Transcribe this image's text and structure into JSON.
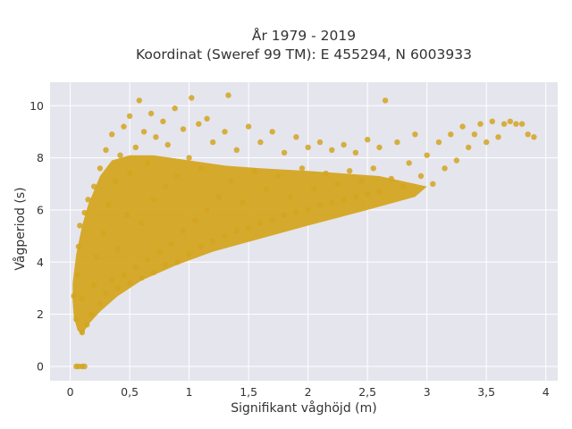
{
  "chart_data": {
    "type": "scatter",
    "title": "År 1979 - 2019",
    "subtitle": "Koordinat (Sweref 99 TM): E 455294, N 6003933",
    "xlabel": "Signifikant våghöjd (m)",
    "ylabel": "Vågperiod (s)",
    "xlim": [
      -0.17,
      4.1
    ],
    "ylim": [
      -0.55,
      10.9
    ],
    "x_ticks": [
      0,
      0.5,
      1,
      1.5,
      2,
      2.5,
      3,
      3.5,
      4
    ],
    "x_tick_labels": [
      "0",
      "0,5",
      "1",
      "1,5",
      "2",
      "2,5",
      "3",
      "3,5",
      "4"
    ],
    "y_ticks": [
      0,
      2,
      4,
      6,
      8,
      10
    ],
    "y_tick_labels": [
      "0",
      "2",
      "4",
      "6",
      "8",
      "10"
    ],
    "grid": true,
    "legend": "none",
    "marker_color": "#D4A520",
    "plot_background": "#E5E5EE",
    "series": [
      {
        "points": [
          [
            0.05,
            0.0
          ],
          [
            0.07,
            0.0
          ],
          [
            0.1,
            0.0
          ],
          [
            0.12,
            0.0
          ],
          [
            0.03,
            2.7
          ],
          [
            0.05,
            1.8
          ],
          [
            0.06,
            3.5
          ],
          [
            0.07,
            4.6
          ],
          [
            0.08,
            5.4
          ],
          [
            0.1,
            1.3
          ],
          [
            0.1,
            2.6
          ],
          [
            0.12,
            5.9
          ],
          [
            0.14,
            1.6
          ],
          [
            0.15,
            6.4
          ],
          [
            0.18,
            2.0
          ],
          [
            0.2,
            3.1
          ],
          [
            0.2,
            6.9
          ],
          [
            0.22,
            4.2
          ],
          [
            0.25,
            2.4
          ],
          [
            0.25,
            7.6
          ],
          [
            0.28,
            5.1
          ],
          [
            0.3,
            2.8
          ],
          [
            0.3,
            8.3
          ],
          [
            0.32,
            6.2
          ],
          [
            0.35,
            3.3
          ],
          [
            0.35,
            8.9
          ],
          [
            0.38,
            7.1
          ],
          [
            0.4,
            3.0
          ],
          [
            0.4,
            4.5
          ],
          [
            0.42,
            8.1
          ],
          [
            0.45,
            3.5
          ],
          [
            0.45,
            9.2
          ],
          [
            0.48,
            5.8
          ],
          [
            0.5,
            3.2
          ],
          [
            0.5,
            7.4
          ],
          [
            0.5,
            9.6
          ],
          [
            0.55,
            3.8
          ],
          [
            0.55,
            8.4
          ],
          [
            0.58,
            10.2
          ],
          [
            0.6,
            3.4
          ],
          [
            0.6,
            5.5
          ],
          [
            0.62,
            9.0
          ],
          [
            0.65,
            4.1
          ],
          [
            0.65,
            7.8
          ],
          [
            0.68,
            9.7
          ],
          [
            0.7,
            3.6
          ],
          [
            0.7,
            6.4
          ],
          [
            0.72,
            8.8
          ],
          [
            0.75,
            4.4
          ],
          [
            0.78,
            9.4
          ],
          [
            0.8,
            3.9
          ],
          [
            0.8,
            6.9
          ],
          [
            0.82,
            8.5
          ],
          [
            0.85,
            4.7
          ],
          [
            0.88,
            9.9
          ],
          [
            0.9,
            4.0
          ],
          [
            0.9,
            7.3
          ],
          [
            0.95,
            5.2
          ],
          [
            0.95,
            9.1
          ],
          [
            1.0,
            4.3
          ],
          [
            1.0,
            8.0
          ],
          [
            1.02,
            10.3
          ],
          [
            1.05,
            5.6
          ],
          [
            1.08,
            9.3
          ],
          [
            1.1,
            4.6
          ],
          [
            1.1,
            7.6
          ],
          [
            1.15,
            6.0
          ],
          [
            1.15,
            9.5
          ],
          [
            1.2,
            4.8
          ],
          [
            1.2,
            8.6
          ],
          [
            1.25,
            6.5
          ],
          [
            1.3,
            5.0
          ],
          [
            1.3,
            9.0
          ],
          [
            1.33,
            10.4
          ],
          [
            1.35,
            7.1
          ],
          [
            1.4,
            5.2
          ],
          [
            1.4,
            8.3
          ],
          [
            1.45,
            6.3
          ],
          [
            1.5,
            5.3
          ],
          [
            1.5,
            9.2
          ],
          [
            1.55,
            7.5
          ],
          [
            1.6,
            5.5
          ],
          [
            1.6,
            8.6
          ],
          [
            1.65,
            6.8
          ],
          [
            1.7,
            5.6
          ],
          [
            1.7,
            9.0
          ],
          [
            1.75,
            7.3
          ],
          [
            1.8,
            5.8
          ],
          [
            1.8,
            8.2
          ],
          [
            1.85,
            6.5
          ],
          [
            1.9,
            5.9
          ],
          [
            1.9,
            8.8
          ],
          [
            1.95,
            7.6
          ],
          [
            2.0,
            6.0
          ],
          [
            2.0,
            8.4
          ],
          [
            2.05,
            6.8
          ],
          [
            2.1,
            6.2
          ],
          [
            2.1,
            8.6
          ],
          [
            2.15,
            7.4
          ],
          [
            2.2,
            6.3
          ],
          [
            2.2,
            8.3
          ],
          [
            2.25,
            7.0
          ],
          [
            2.3,
            6.4
          ],
          [
            2.3,
            8.5
          ],
          [
            2.35,
            7.5
          ],
          [
            2.4,
            6.5
          ],
          [
            2.4,
            8.2
          ],
          [
            2.45,
            7.1
          ],
          [
            2.5,
            6.6
          ],
          [
            2.5,
            8.7
          ],
          [
            2.55,
            7.6
          ],
          [
            2.6,
            6.7
          ],
          [
            2.6,
            8.4
          ],
          [
            2.65,
            10.2
          ],
          [
            2.7,
            7.2
          ],
          [
            2.75,
            8.6
          ],
          [
            2.8,
            6.9
          ],
          [
            2.85,
            7.8
          ],
          [
            2.9,
            8.9
          ],
          [
            2.95,
            7.3
          ],
          [
            3.0,
            8.1
          ],
          [
            3.05,
            7.0
          ],
          [
            3.1,
            8.6
          ],
          [
            3.15,
            7.6
          ],
          [
            3.2,
            8.9
          ],
          [
            3.25,
            7.9
          ],
          [
            3.3,
            9.2
          ],
          [
            3.35,
            8.4
          ],
          [
            3.4,
            8.9
          ],
          [
            3.45,
            9.3
          ],
          [
            3.5,
            8.6
          ],
          [
            3.55,
            9.4
          ],
          [
            3.6,
            8.8
          ],
          [
            3.65,
            9.3
          ],
          [
            3.7,
            9.4
          ],
          [
            3.75,
            9.3
          ],
          [
            3.8,
            9.3
          ],
          [
            3.85,
            8.9
          ],
          [
            3.9,
            8.8
          ]
        ]
      }
    ]
  }
}
